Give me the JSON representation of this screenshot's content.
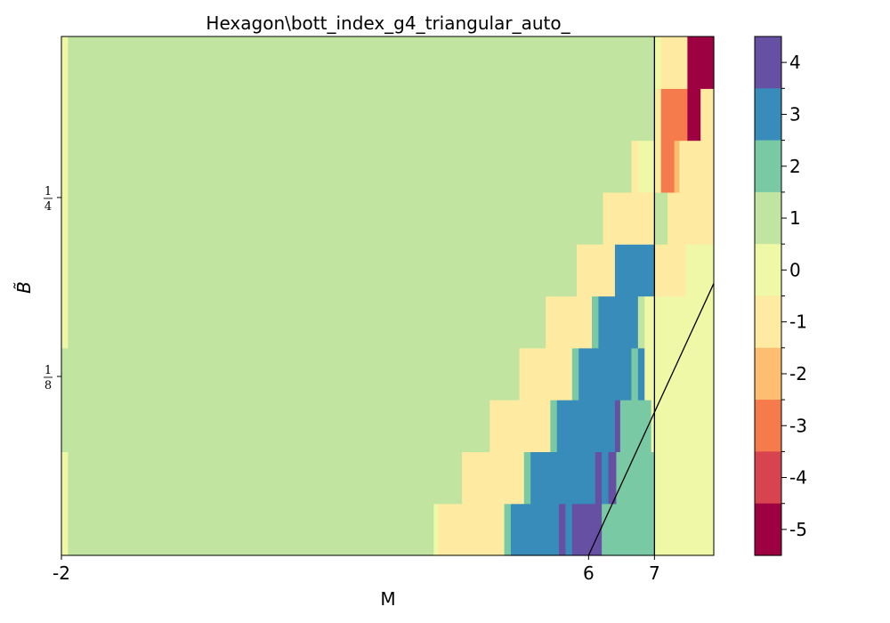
{
  "chart_data": {
    "type": "heatmap",
    "title": "Hexagon\\bott_index_g4_triangular_auto_",
    "xlabel": "M",
    "ylabel": "B̃",
    "xlim": [
      -2,
      7.9
    ],
    "ylim": [
      0,
      0.3625
    ],
    "x_ticks": [
      {
        "value": -2,
        "label": "-2"
      },
      {
        "value": 6,
        "label": "6"
      },
      {
        "value": 7,
        "label": "7"
      }
    ],
    "y_ticks": [
      {
        "value": 0.125,
        "num": "1",
        "den": "8"
      },
      {
        "value": 0.25,
        "num": "1",
        "den": "4"
      }
    ],
    "colorbar": {
      "levels": [
        4,
        3,
        2,
        1,
        0,
        -1,
        -2,
        -3,
        -4,
        -5
      ],
      "labels": [
        "4",
        "3",
        "2",
        "1",
        "0",
        "-1",
        "-2",
        "-3",
        "-4",
        "-5"
      ],
      "colors": {
        "4": "#6650a3",
        "3": "#388cba",
        "2": "#78c9a4",
        "1": "#c1e4a0",
        "0": "#eff8a6",
        "-1": "#feeba1",
        "-2": "#fdbe70",
        "-3": "#f57a4c",
        "-4": "#d7434e",
        "-5": "#9e0142"
      }
    },
    "rows_bottom_to_top": [
      [
        [
          -2,
          -1.9,
          0
        ],
        [
          -1.9,
          3.65,
          1
        ],
        [
          3.65,
          3.72,
          0
        ],
        [
          3.72,
          4.72,
          -1
        ],
        [
          4.72,
          4.82,
          2
        ],
        [
          4.82,
          5.55,
          3
        ],
        [
          5.55,
          5.65,
          4
        ],
        [
          5.65,
          5.75,
          3
        ],
        [
          5.75,
          6.2,
          4
        ],
        [
          6.2,
          7.0,
          2
        ],
        [
          7.0,
          7.9,
          0
        ]
      ],
      [
        [
          -2,
          -1.9,
          0
        ],
        [
          -1.9,
          4.08,
          1
        ],
        [
          4.08,
          5.02,
          -1
        ],
        [
          5.02,
          5.12,
          2
        ],
        [
          5.12,
          6.1,
          3
        ],
        [
          6.1,
          6.2,
          4
        ],
        [
          6.2,
          6.3,
          3
        ],
        [
          6.3,
          6.42,
          4
        ],
        [
          6.42,
          7.0,
          2
        ],
        [
          7.0,
          7.9,
          0
        ]
      ],
      [
        [
          -2,
          -1.9,
          1
        ],
        [
          -1.9,
          4.5,
          1
        ],
        [
          4.5,
          5.42,
          -1
        ],
        [
          5.42,
          5.52,
          2
        ],
        [
          5.52,
          6.4,
          3
        ],
        [
          6.4,
          6.48,
          4
        ],
        [
          6.48,
          6.95,
          2
        ],
        [
          6.95,
          7.0,
          0
        ],
        [
          7.0,
          7.9,
          0
        ]
      ],
      [
        [
          -2,
          -1.9,
          1
        ],
        [
          -1.9,
          4.95,
          1
        ],
        [
          4.95,
          5.75,
          -1
        ],
        [
          5.75,
          5.85,
          2
        ],
        [
          5.85,
          6.65,
          3
        ],
        [
          6.65,
          6.75,
          2
        ],
        [
          6.75,
          6.85,
          3
        ],
        [
          6.85,
          7.0,
          0
        ],
        [
          7.0,
          7.9,
          0
        ]
      ],
      [
        [
          -2,
          -1.9,
          0
        ],
        [
          -1.9,
          5.35,
          1
        ],
        [
          5.35,
          6.05,
          -1
        ],
        [
          6.05,
          6.15,
          2
        ],
        [
          6.15,
          6.75,
          3
        ],
        [
          6.75,
          6.85,
          1
        ],
        [
          6.85,
          7.0,
          0
        ],
        [
          7.0,
          7.9,
          0
        ]
      ],
      [
        [
          -2,
          -1.9,
          0
        ],
        [
          -1.9,
          5.82,
          1
        ],
        [
          5.82,
          6.4,
          -1
        ],
        [
          6.4,
          6.78,
          3
        ],
        [
          6.78,
          7.0,
          3
        ],
        [
          7.0,
          7.48,
          -1
        ],
        [
          7.48,
          7.9,
          0
        ]
      ],
      [
        [
          -2,
          -1.9,
          0
        ],
        [
          -1.9,
          6.22,
          1
        ],
        [
          6.22,
          6.7,
          -1
        ],
        [
          6.7,
          7.0,
          -1
        ],
        [
          7.0,
          7.2,
          1
        ],
        [
          7.2,
          7.9,
          -1
        ]
      ],
      [
        [
          -2,
          -1.9,
          0
        ],
        [
          -1.9,
          6.65,
          1
        ],
        [
          6.65,
          6.75,
          -1
        ],
        [
          6.75,
          7.0,
          0
        ],
        [
          7.0,
          7.1,
          -1
        ],
        [
          7.1,
          7.3,
          -3
        ],
        [
          7.3,
          7.38,
          -2
        ],
        [
          7.38,
          7.9,
          -1
        ]
      ],
      [
        [
          -2,
          -1.9,
          0
        ],
        [
          -1.9,
          7.0,
          1
        ],
        [
          7.0,
          7.1,
          -1
        ],
        [
          7.1,
          7.5,
          -3
        ],
        [
          7.5,
          7.7,
          -5
        ],
        [
          7.7,
          7.9,
          -1
        ]
      ],
      [
        [
          -2,
          -1.9,
          0
        ],
        [
          -1.9,
          7.0,
          1
        ],
        [
          7.0,
          7.1,
          0
        ],
        [
          7.1,
          7.5,
          -1
        ],
        [
          7.5,
          7.9,
          -5
        ]
      ]
    ],
    "lines": [
      {
        "name": "vertical-line",
        "points": [
          [
            7,
            0
          ],
          [
            7,
            0.3625
          ]
        ]
      },
      {
        "name": "diagonal-line",
        "points": [
          [
            6,
            0
          ],
          [
            7.9,
            0.19
          ]
        ]
      }
    ]
  }
}
